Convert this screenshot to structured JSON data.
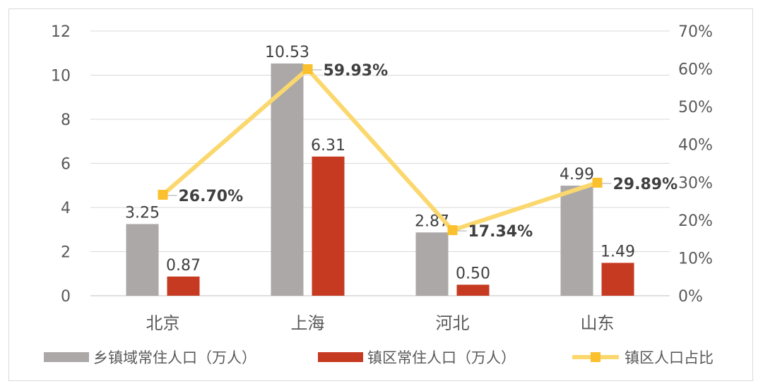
{
  "chart_data": {
    "type": "bar+line",
    "categories": [
      "北京",
      "上海",
      "河北",
      "山东"
    ],
    "series": [
      {
        "name": "乡镇域常住人口（万人）",
        "type": "bar",
        "axis": "left",
        "values": [
          3.25,
          10.53,
          2.87,
          4.99
        ],
        "labels": [
          "3.25",
          "10.53",
          "2.87",
          "4.99"
        ],
        "color": "#aba8a7"
      },
      {
        "name": "镇区常住人口（万人）",
        "type": "bar",
        "axis": "left",
        "values": [
          0.87,
          6.31,
          0.5,
          1.49
        ],
        "labels": [
          "0.87",
          "6.31",
          "0.50",
          "1.49"
        ],
        "color": "#c63a22"
      },
      {
        "name": "镇区人口占比",
        "type": "line",
        "axis": "right",
        "values": [
          26.7,
          59.93,
          17.34,
          29.89
        ],
        "labels": [
          "26.70%",
          "59.93%",
          "17.34%",
          "29.89%"
        ],
        "color": "#fbd86e",
        "marker_color": "#fbc02d"
      }
    ],
    "y_left": {
      "ylim": [
        0,
        12
      ],
      "ticks": [
        "0",
        "2",
        "4",
        "6",
        "8",
        "10",
        "12"
      ]
    },
    "y_right": {
      "ylim": [
        0,
        70
      ],
      "ticks": [
        "0%",
        "10%",
        "20%",
        "30%",
        "40%",
        "50%",
        "60%",
        "70%"
      ]
    },
    "grid": true,
    "legend_position": "bottom"
  }
}
